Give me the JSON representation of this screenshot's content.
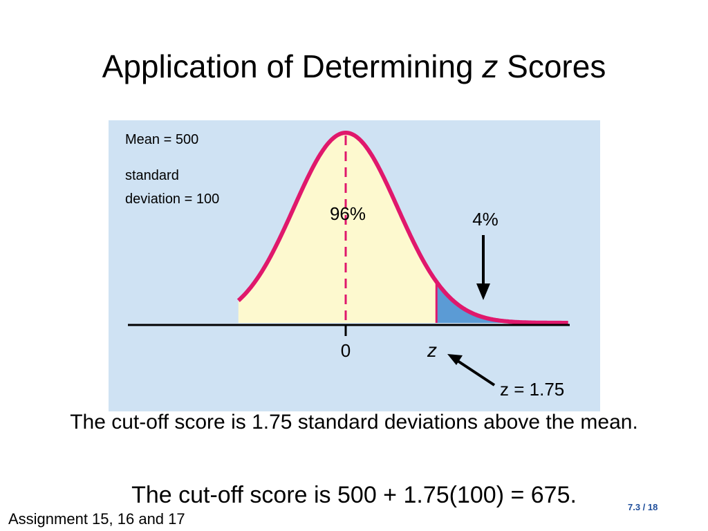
{
  "slide": {
    "title_main": "Application of Determining ",
    "title_var": "z",
    "title_tail": " Scores",
    "caption_line1": "The cut-off score is 1.75 standard deviations above the mean.",
    "caption_line2": "The cut-off score is 500 + 1.75(100) = 675.",
    "footer": "Assignment 15, 16 and 17",
    "page_number": "7.3 / 18"
  },
  "diagram": {
    "mean_label": "Mean = 500",
    "sd_label_line1": "standard",
    "sd_label_line2": "deviation = 100",
    "left_area_label": "96%",
    "right_area_label": "4%",
    "zero_tick_label": "0",
    "z_tick_label": "z",
    "z_value_label": "z = 1.75",
    "cutoff_z": 1.75,
    "left_area_percent": 96,
    "right_area_percent": 4,
    "colors": {
      "background": "#cfe2f3",
      "curve": "#e0186c",
      "left_fill": "#fdf9cf",
      "right_fill": "#5b9bd5",
      "axis": "#000000"
    }
  }
}
